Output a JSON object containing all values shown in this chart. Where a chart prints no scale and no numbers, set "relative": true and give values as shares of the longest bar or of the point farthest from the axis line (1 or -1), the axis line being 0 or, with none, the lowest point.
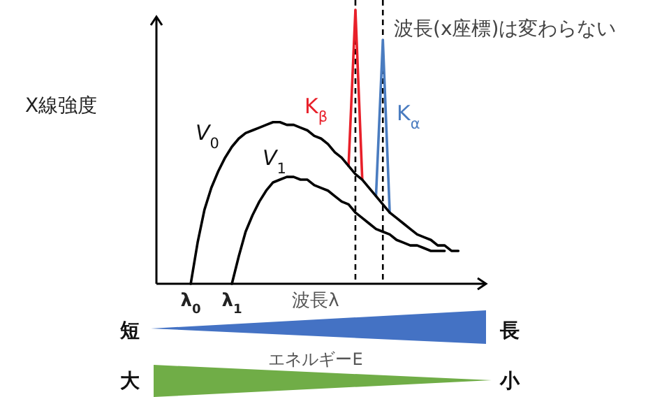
{
  "chart_data": {
    "type": "line",
    "relative": true,
    "ylabel": "X線強度",
    "xlabel": "波長λ",
    "categories": [
      null,
      null,
      null,
      null,
      null,
      "λ$_{0}$",
      null,
      null,
      null,
      null,
      null,
      "λ$_{1}$",
      null,
      null,
      null,
      null,
      null,
      null,
      null,
      null,
      null,
      null,
      null,
      null,
      null,
      null,
      null,
      null,
      null,
      null,
      null,
      null,
      null,
      null,
      null,
      null,
      null,
      null,
      null,
      null,
      null,
      null,
      null,
      null,
      null,
      null,
      null,
      null
    ],
    "series": [
      {
        "name": "*V*$_{0}$",
        "color": "#000000",
        "values": [
          null,
          null,
          null,
          null,
          null,
          0,
          0.15,
          0.27,
          0.35,
          0.41,
          0.46,
          0.5,
          0.53,
          0.55,
          0.56,
          0.57,
          0.58,
          0.59,
          0.59,
          0.58,
          0.58,
          0.57,
          0.56,
          0.54,
          0.53,
          0.51,
          0.48,
          0.46,
          0.43,
          0.4,
          0.38,
          0.35,
          0.32,
          0.29,
          0.26,
          0.24,
          0.22,
          0.2,
          0.18,
          0.17,
          0.16,
          0.14,
          0.14,
          0.12,
          0.12,
          null,
          null,
          null
        ]
      },
      {
        "name": "*V*$_{1}$",
        "color": "#000000",
        "values": [
          null,
          null,
          null,
          null,
          null,
          null,
          null,
          null,
          null,
          null,
          null,
          0,
          0.1,
          0.19,
          0.25,
          0.3,
          0.34,
          0.37,
          0.38,
          0.39,
          0.39,
          0.38,
          0.38,
          0.36,
          0.35,
          0.34,
          0.32,
          0.3,
          0.29,
          0.26,
          0.24,
          0.22,
          0.2,
          0.19,
          0.18,
          0.16,
          0.15,
          0.14,
          0.14,
          0.13,
          0.12,
          0.12,
          0.12,
          null,
          null,
          null,
          null,
          null
        ]
      },
      {
        "name": "K$_{β}$",
        "color": "#e8202a",
        "values": [
          null,
          null,
          null,
          null,
          null,
          null,
          null,
          null,
          null,
          null,
          null,
          null,
          null,
          null,
          null,
          null,
          null,
          null,
          null,
          null,
          null,
          null,
          null,
          null,
          null,
          null,
          null,
          null,
          0.43,
          1,
          0.38,
          null,
          null,
          null,
          null,
          null,
          null,
          null,
          null,
          null,
          null,
          null,
          null,
          null,
          null,
          null,
          null,
          null
        ]
      },
      {
        "name": "K$_{α}$",
        "color": "#4a7cc0",
        "values": [
          null,
          null,
          null,
          null,
          null,
          null,
          null,
          null,
          null,
          null,
          null,
          null,
          null,
          null,
          null,
          null,
          null,
          null,
          null,
          null,
          null,
          null,
          null,
          null,
          null,
          null,
          null,
          null,
          null,
          null,
          null,
          null,
          0.32,
          0.89,
          0.26,
          null,
          null,
          null,
          null,
          null,
          null,
          null,
          null,
          null,
          null,
          null,
          null,
          null
        ]
      }
    ],
    "annotations": [
      "波長(x座標)は変わらない",
      "短",
      "長",
      "エネルギーE",
      "大",
      "小"
    ],
    "legend": false,
    "marker": "none",
    "line_style": "solid"
  }
}
